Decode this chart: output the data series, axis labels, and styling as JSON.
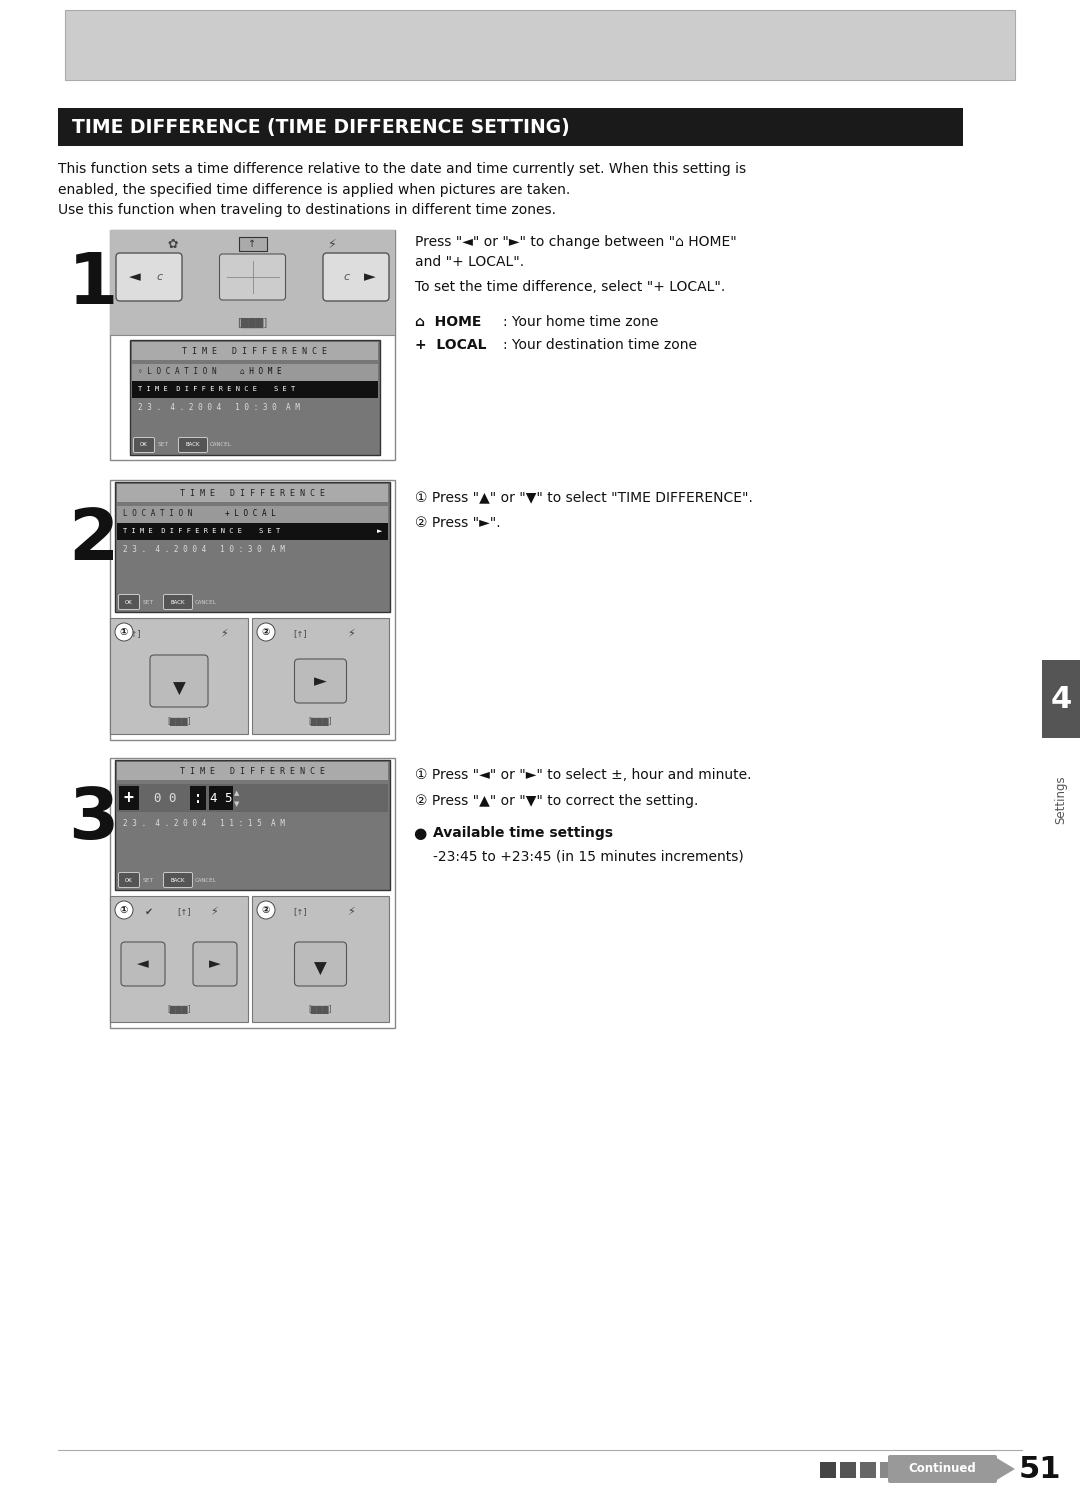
{
  "bg_color": "#ffffff",
  "title_text": "TIME DIFFERENCE (TIME DIFFERENCE SETTING)",
  "title_bg": "#1a1a1a",
  "title_fg": "#ffffff",
  "body_line1": "This function sets a time difference relative to the date and time currently set. When this setting is",
  "body_line2": "enabled, the specified time difference is applied when pictures are taken.",
  "body_line3": "Use this function when traveling to destinations in different time zones.",
  "footer_text": "Continued",
  "page_num": "51",
  "section_num": "4",
  "section_label": "Settings",
  "gray_header_color": "#cccccc",
  "lcd_bg_color": "#888888",
  "lcd_title_color": "#aaaaaa",
  "cam_body_color": "#c8c8c8",
  "panel_color": "#c0c0c0"
}
